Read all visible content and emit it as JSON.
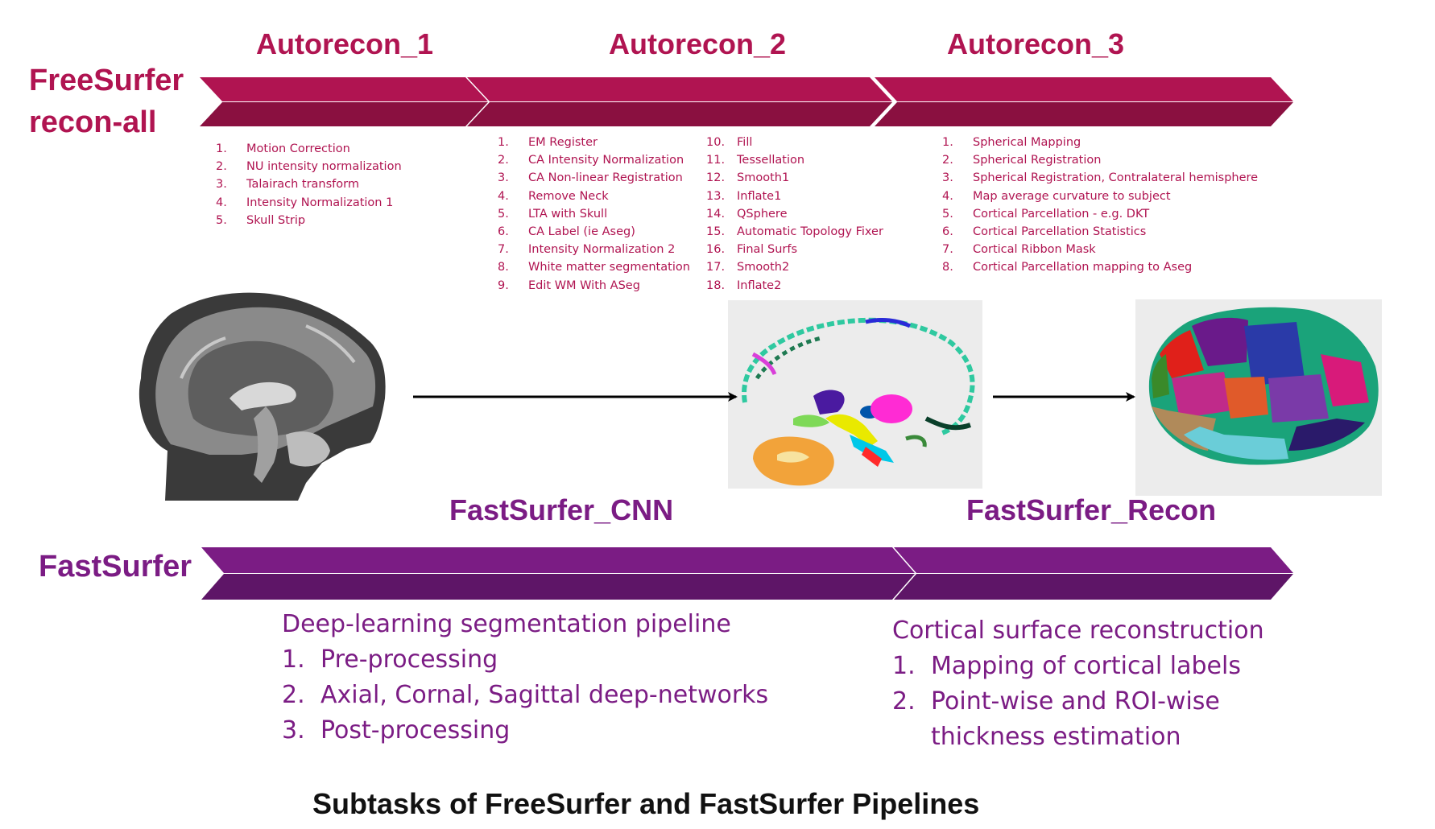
{
  "freesurfer": {
    "title_line1": "FreeSurfer",
    "title_line2": "recon-all",
    "color": "#b01451",
    "stages": [
      {
        "title": "Autorecon_1",
        "columns": [
          [
            {
              "n": "1.",
              "t": "Motion Correction"
            },
            {
              "n": "2.",
              "t": "NU intensity normalization"
            },
            {
              "n": "3.",
              "t": "Talairach transform"
            },
            {
              "n": "4.",
              "t": "Intensity Normalization 1"
            },
            {
              "n": "5.",
              "t": "Skull Strip"
            }
          ]
        ]
      },
      {
        "title": "Autorecon_2",
        "columns": [
          [
            {
              "n": "1.",
              "t": "EM Register"
            },
            {
              "n": "2.",
              "t": "CA Intensity Normalization"
            },
            {
              "n": "3.",
              "t": "CA Non-linear Registration"
            },
            {
              "n": "4.",
              "t": "Remove Neck"
            },
            {
              "n": "5.",
              "t": "LTA with Skull"
            },
            {
              "n": "6.",
              "t": "CA Label (ie Aseg)"
            },
            {
              "n": "7.",
              "t": "Intensity Normalization 2"
            },
            {
              "n": "8.",
              "t": "White matter segmentation"
            },
            {
              "n": "9.",
              "t": "Edit WM With ASeg"
            }
          ],
          [
            {
              "n": "10.",
              "t": "Fill"
            },
            {
              "n": "11.",
              "t": "Tessellation"
            },
            {
              "n": "12.",
              "t": "Smooth1"
            },
            {
              "n": "13.",
              "t": "Inflate1"
            },
            {
              "n": "14.",
              "t": "QSphere"
            },
            {
              "n": "15.",
              "t": "Automatic Topology Fixer"
            },
            {
              "n": "16.",
              "t": "Final Surfs"
            },
            {
              "n": "17.",
              "t": "Smooth2"
            },
            {
              "n": "18.",
              "t": "Inflate2"
            }
          ]
        ]
      },
      {
        "title": "Autorecon_3",
        "columns": [
          [
            {
              "n": "1.",
              "t": "Spherical Mapping"
            },
            {
              "n": "2.",
              "t": "Spherical Registration"
            },
            {
              "n": "3.",
              "t": "Spherical Registration, Contralateral hemisphere"
            },
            {
              "n": "4.",
              "t": "Map average curvature to subject"
            },
            {
              "n": "5.",
              "t": "Cortical Parcellation - e.g. DKT"
            },
            {
              "n": "6.",
              "t": "Cortical Parcellation Statistics"
            },
            {
              "n": "7.",
              "t": "Cortical Ribbon Mask"
            },
            {
              "n": "8.",
              "t": "Cortical Parcellation mapping to Aseg"
            }
          ]
        ]
      }
    ]
  },
  "fastsurfer": {
    "title": "FastSurfer",
    "color": "#7b1c84",
    "cnn": {
      "title": "FastSurfer_CNN",
      "heading": "Deep-learning segmentation pipeline",
      "items": [
        {
          "n": "1.",
          "t": "Pre-processing"
        },
        {
          "n": "2.",
          "t": "Axial, Cornal, Sagittal deep-networks"
        },
        {
          "n": "3.",
          "t": "Post-processing"
        }
      ]
    },
    "recon": {
      "title": "FastSurfer_Recon",
      "heading": "Cortical surface reconstruction",
      "items": [
        {
          "n": "1.",
          "t": "Mapping of cortical labels"
        },
        {
          "n": "2.",
          "t": "Point-wise and ROI-wise"
        },
        {
          "n": "",
          "t": "thickness estimation"
        }
      ]
    }
  },
  "images": {
    "mri": "sagittal-mri-slice",
    "segmentation": "segmentation-map",
    "surface": "parcellated-cortical-surface"
  },
  "caption": "Subtasks of FreeSurfer and FastSurfer Pipelines"
}
